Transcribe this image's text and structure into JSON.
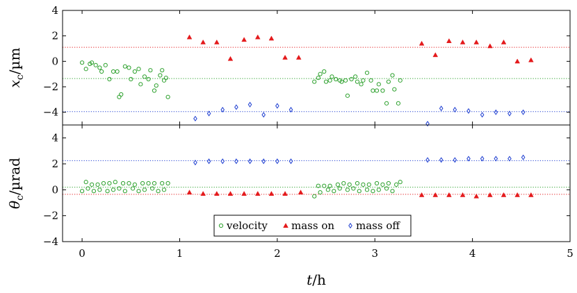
{
  "chart_data": [
    {
      "type": "scatter",
      "ylabel_main": "x",
      "ylabel_sub": "c",
      "ylabel_unit": "/µm",
      "ylim": [
        -5,
        4
      ],
      "yticks": [
        -4,
        -2,
        0,
        2,
        4
      ],
      "xlim": [
        -0.2,
        5
      ],
      "grid": false,
      "series": [
        {
          "key": "velocity",
          "marker": "circle",
          "color": "#2ca02c",
          "mean": -1.35,
          "x": [
            0.0,
            0.04,
            0.08,
            0.1,
            0.14,
            0.18,
            0.2,
            0.24,
            0.28,
            0.32,
            0.36,
            0.38,
            0.4,
            0.44,
            0.48,
            0.5,
            0.54,
            0.58,
            0.6,
            0.64,
            0.68,
            0.7,
            0.74,
            0.76,
            0.8,
            0.82,
            0.84,
            0.86,
            0.88,
            2.38,
            2.42,
            2.44,
            2.48,
            2.5,
            2.54,
            2.56,
            2.6,
            2.64,
            2.66,
            2.7,
            2.72,
            2.76,
            2.8,
            2.82,
            2.86,
            2.88,
            2.92,
            2.96,
            2.98,
            3.02,
            3.04,
            3.08,
            3.12,
            3.14,
            3.18,
            3.2,
            3.24,
            3.26
          ],
          "y": [
            -0.1,
            -0.6,
            -0.2,
            -0.1,
            -0.3,
            -0.5,
            -0.8,
            -0.3,
            -1.4,
            -0.8,
            -0.8,
            -2.8,
            -2.6,
            -0.4,
            -0.5,
            -1.4,
            -0.8,
            -0.6,
            -1.8,
            -1.2,
            -1.4,
            -0.7,
            -2.3,
            -1.9,
            -1.1,
            -0.7,
            -1.5,
            -1.3,
            -2.8,
            -1.6,
            -1.3,
            -1.0,
            -0.8,
            -1.6,
            -1.5,
            -1.2,
            -1.4,
            -1.5,
            -1.6,
            -1.5,
            -2.7,
            -1.4,
            -1.2,
            -1.6,
            -1.8,
            -1.5,
            -0.9,
            -1.5,
            -2.3,
            -2.3,
            -1.8,
            -2.3,
            -3.3,
            -1.6,
            -1.1,
            -2.2,
            -3.3,
            -1.5
          ]
        },
        {
          "key": "mass_on",
          "marker": "triangle",
          "color": "#e41a1c",
          "mean": 1.1,
          "x": [
            1.1,
            1.24,
            1.38,
            1.52,
            1.66,
            1.8,
            1.94,
            2.08,
            2.22,
            3.48,
            3.62,
            3.76,
            3.9,
            4.04,
            4.18,
            4.32,
            4.46,
            4.6
          ],
          "y": [
            1.9,
            1.5,
            1.5,
            0.2,
            1.7,
            1.9,
            1.8,
            0.3,
            0.3,
            1.4,
            0.5,
            1.6,
            1.5,
            1.5,
            1.2,
            1.5,
            0.0,
            0.1
          ]
        },
        {
          "key": "mass_off",
          "marker": "diamond",
          "color": "#1f3fd1",
          "mean": -3.95,
          "x": [
            1.16,
            1.3,
            1.44,
            1.58,
            1.72,
            1.86,
            2.0,
            2.14,
            3.54,
            3.68,
            3.82,
            3.96,
            4.1,
            4.24,
            4.38,
            4.52
          ],
          "y": [
            -4.5,
            -4.1,
            -3.8,
            -3.6,
            -3.4,
            -4.2,
            -3.5,
            -3.8,
            -4.9,
            -3.7,
            -3.8,
            -3.9,
            -4.2,
            -4.0,
            -4.1,
            -4.0
          ]
        }
      ]
    },
    {
      "type": "scatter",
      "ylabel_main": "θ",
      "ylabel_sub": "c",
      "ylabel_unit": "/µrad",
      "xlabel_main": "t",
      "xlabel_unit": "/h",
      "ylim": [
        -4,
        5
      ],
      "yticks": [
        -4,
        -2,
        0,
        2,
        4
      ],
      "xlim": [
        -0.2,
        5
      ],
      "xticks": [
        0,
        1,
        2,
        3,
        4,
        5
      ],
      "grid": false,
      "legend_position": "bottom-center",
      "series": [
        {
          "key": "velocity",
          "name": "velocity",
          "marker": "circle",
          "color": "#2ca02c",
          "mean": 0.2,
          "x": [
            0.0,
            0.04,
            0.06,
            0.1,
            0.12,
            0.16,
            0.18,
            0.22,
            0.26,
            0.28,
            0.32,
            0.34,
            0.38,
            0.42,
            0.44,
            0.48,
            0.52,
            0.54,
            0.58,
            0.62,
            0.64,
            0.68,
            0.72,
            0.74,
            0.78,
            0.82,
            0.84,
            0.88,
            2.38,
            2.42,
            2.44,
            2.48,
            2.52,
            2.54,
            2.58,
            2.62,
            2.64,
            2.68,
            2.72,
            2.74,
            2.78,
            2.82,
            2.84,
            2.88,
            2.92,
            2.94,
            2.98,
            3.02,
            3.04,
            3.08,
            3.12,
            3.14,
            3.18,
            3.22,
            3.26
          ],
          "y": [
            -0.1,
            0.6,
            0.1,
            0.4,
            -0.1,
            0.4,
            0.0,
            0.5,
            -0.1,
            0.5,
            0.0,
            0.6,
            0.1,
            0.5,
            -0.1,
            0.5,
            0.1,
            0.4,
            -0.1,
            0.5,
            0.0,
            0.5,
            0.1,
            0.5,
            -0.1,
            0.5,
            0.0,
            0.5,
            -0.5,
            0.3,
            -0.2,
            0.3,
            0.0,
            0.3,
            -0.1,
            0.4,
            0.1,
            0.5,
            0.0,
            0.4,
            0.1,
            0.5,
            -0.1,
            0.4,
            0.0,
            0.4,
            -0.1,
            0.5,
            0.0,
            0.4,
            0.1,
            0.5,
            -0.1,
            0.4,
            0.6
          ]
        },
        {
          "key": "mass_on",
          "name": "mass on",
          "marker": "triangle",
          "color": "#e41a1c",
          "mean": -0.35,
          "x": [
            1.1,
            1.24,
            1.38,
            1.52,
            1.66,
            1.8,
            1.94,
            2.08,
            2.24,
            3.48,
            3.62,
            3.76,
            3.9,
            4.04,
            4.18,
            4.32,
            4.46,
            4.6
          ],
          "y": [
            -0.2,
            -0.3,
            -0.3,
            -0.3,
            -0.3,
            -0.3,
            -0.3,
            -0.3,
            -0.2,
            -0.4,
            -0.4,
            -0.4,
            -0.4,
            -0.5,
            -0.4,
            -0.4,
            -0.4,
            -0.4
          ]
        },
        {
          "key": "mass_off",
          "name": "mass off",
          "marker": "diamond",
          "color": "#1f3fd1",
          "mean": 2.25,
          "x": [
            1.16,
            1.3,
            1.44,
            1.58,
            1.72,
            1.86,
            2.0,
            2.14,
            3.54,
            3.68,
            3.82,
            3.96,
            4.1,
            4.24,
            4.38,
            4.52
          ],
          "y": [
            2.1,
            2.2,
            2.2,
            2.2,
            2.2,
            2.2,
            2.2,
            2.2,
            2.3,
            2.3,
            2.3,
            2.4,
            2.4,
            2.4,
            2.4,
            2.5
          ]
        }
      ]
    }
  ]
}
